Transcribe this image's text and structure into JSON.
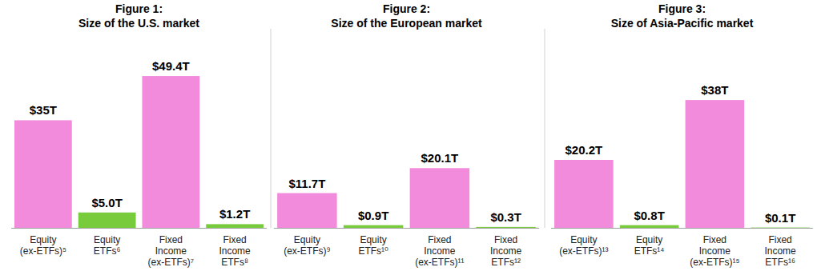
{
  "chart_data": [
    {
      "type": "bar",
      "title": "Figure 1:",
      "subtitle": "Size of the U.S. market",
      "categories": [
        "Equity (ex-ETFs)⁵",
        "Equity ETFs⁶",
        "Fixed Income (ex-ETFs)⁷",
        "Fixed Income ETFs⁸"
      ],
      "values": [
        35,
        5.0,
        49.4,
        1.2
      ],
      "value_labels": [
        "$35T",
        "$5.0T",
        "$49.4T",
        "$1.2T"
      ],
      "colors": [
        "#f38bdc",
        "#78cc3c",
        "#f38bdc",
        "#78cc3c"
      ],
      "ylim": [
        0,
        58
      ],
      "grid": false,
      "data_labels": true,
      "tick_labels": false
    },
    {
      "type": "bar",
      "title": "Figure 2:",
      "subtitle": "Size of the European market",
      "categories": [
        "Equity (ex-ETFs)⁹",
        "Equity ETFs¹⁰",
        "Fixed Income (ex-ETFs)¹¹",
        "Fixed Income ETFs¹²"
      ],
      "values": [
        11.7,
        0.9,
        20.1,
        0.3
      ],
      "value_labels": [
        "$11.7T",
        "$0.9T",
        "$20.1T",
        "$0.3T"
      ],
      "colors": [
        "#f38bdc",
        "#78cc3c",
        "#f38bdc",
        "#78cc3c"
      ],
      "ylim": [
        0,
        60
      ],
      "grid": false,
      "data_labels": true,
      "tick_labels": false
    },
    {
      "type": "bar",
      "title": "Figure 3:",
      "subtitle": "Size of Asia-Pacific market",
      "categories": [
        "Equity (ex-ETFs)¹³",
        "Equity ETFs¹⁴",
        "Fixed Income (ex-ETFs)¹⁵",
        "Fixed Income ETFs¹⁶"
      ],
      "values": [
        20.2,
        0.8,
        38,
        0.1
      ],
      "value_labels": [
        "$20.2T",
        "$0.8T",
        "$38T",
        "$0.1T"
      ],
      "colors": [
        "#f38bdc",
        "#78cc3c",
        "#f38bdc",
        "#78cc3c"
      ],
      "ylim": [
        0,
        53
      ],
      "grid": false,
      "data_labels": true,
      "tick_labels": false
    }
  ]
}
